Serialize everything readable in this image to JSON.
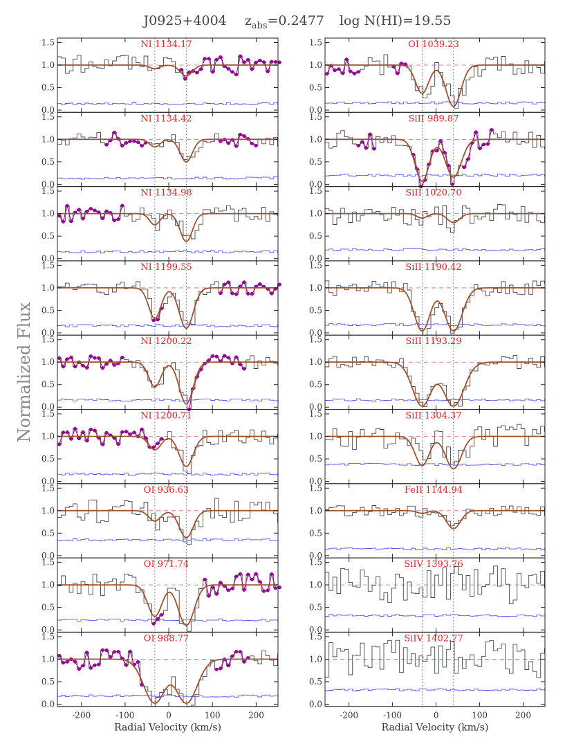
{
  "title": {
    "object": "J0925+4004",
    "zabs_prefix": "z",
    "zabs_sub": "abs",
    "zabs_value": "=0.2477",
    "logN": "log N(HI)=19.55"
  },
  "chart_data": {
    "type": "line",
    "ylabel": "Normalized Flux",
    "xlabel": "Radial Velocity (km/s)",
    "xlim": [
      -255,
      250
    ],
    "ylim": [
      -0.05,
      1.6
    ],
    "xticks": [
      -200,
      -100,
      0,
      100,
      200
    ],
    "yticks": [
      "0.0",
      "0.5",
      "1.0",
      "1.5"
    ],
    "component_velocities": [
      -32,
      40
    ],
    "colors": {
      "data": "#444444",
      "error": "#5555ee",
      "model": "#a0522d",
      "blend": "#990099",
      "label": "#e32222",
      "continuum": "#cc6666"
    },
    "columns": [
      {
        "panels": [
          {
            "label": "NI 1134.17",
            "comps": [
              [
                -32,
                0.08,
                12
              ],
              [
                40,
                0.24,
                14
              ]
            ],
            "noise": 0.22,
            "err": 0.14,
            "seed": 11,
            "blend": [
              [
                20,
                250
              ]
            ]
          },
          {
            "label": "NI 1134.42",
            "comps": [
              [
                -32,
                0.17,
                12
              ],
              [
                40,
                0.5,
                14
              ]
            ],
            "noise": 0.16,
            "err": 0.14,
            "seed": 12,
            "blend": [
              [
                -150,
                -50
              ],
              [
                110,
                200
              ]
            ]
          },
          {
            "label": "NI 1134.98",
            "comps": [
              [
                -32,
                0.25,
                12
              ],
              [
                40,
                0.62,
                14
              ]
            ],
            "noise": 0.18,
            "err": 0.15,
            "seed": 13,
            "blend": [
              [
                -255,
                -110
              ]
            ]
          },
          {
            "label": "NI 1199.55",
            "comps": [
              [
                -32,
                0.68,
                14
              ],
              [
                40,
                0.9,
                16
              ]
            ],
            "noise": 0.15,
            "err": 0.16,
            "seed": 14,
            "blend": [
              [
                -40,
                -20
              ],
              [
                110,
                250
              ]
            ]
          },
          {
            "label": "NI 1200.22",
            "comps": [
              [
                -32,
                0.55,
                14
              ],
              [
                40,
                0.93,
                16
              ]
            ],
            "noise": 0.15,
            "err": 0.16,
            "seed": 15,
            "blend": [
              [
                -255,
                -110
              ],
              [
                40,
                170
              ]
            ]
          },
          {
            "label": "NI 1200.71",
            "comps": [
              [
                -32,
                0.3,
                14
              ],
              [
                40,
                0.67,
                16
              ]
            ],
            "noise": 0.18,
            "err": 0.16,
            "seed": 16,
            "blend": [
              [
                -255,
                -20
              ]
            ]
          },
          {
            "label": "OI 936.63",
            "comps": [
              [
                -32,
                0.23,
                14
              ],
              [
                40,
                0.6,
                16
              ]
            ],
            "noise": 0.28,
            "err": 0.35,
            "seed": 17,
            "blend": []
          },
          {
            "label": "OI 971.74",
            "comps": [
              [
                -32,
                0.7,
                16
              ],
              [
                40,
                0.9,
                18
              ]
            ],
            "noise": 0.25,
            "err": 0.22,
            "seed": 18,
            "blend": [
              [
                -40,
                -20
              ],
              [
                70,
                250
              ]
            ]
          },
          {
            "label": "OI 988.77",
            "comps": [
              [
                -32,
                0.98,
                25
              ],
              [
                40,
                0.98,
                25
              ]
            ],
            "noise": 0.22,
            "err": 0.18,
            "seed": 19,
            "blend": [
              [
                -255,
                -60
              ],
              [
                100,
                180
              ]
            ]
          }
        ]
      },
      {
        "panels": [
          {
            "label": "OI 1039.23",
            "comps": [
              [
                -32,
                0.63,
                15
              ],
              [
                40,
                0.92,
                17
              ]
            ],
            "noise": 0.25,
            "err": 0.16,
            "seed": 21,
            "blend": [
              [
                -255,
                -180
              ],
              [
                -110,
                -70
              ]
            ]
          },
          {
            "label": "SiII 989.87",
            "comps": [
              [
                -32,
                0.93,
                16
              ],
              [
                40,
                0.84,
                18
              ]
            ],
            "noise": 0.22,
            "err": 0.2,
            "seed": 22,
            "blend": [
              [
                -190,
                -140
              ],
              [
                -60,
                40
              ],
              [
                60,
                130
              ]
            ]
          },
          {
            "label": "SiII 1020.70",
            "comps": [
              [
                -32,
                0.1,
                12
              ],
              [
                40,
                0.2,
                14
              ]
            ],
            "noise": 0.25,
            "err": 0.2,
            "seed": 23,
            "blend": []
          },
          {
            "label": "SiII 1190.42",
            "comps": [
              [
                -32,
                0.96,
                18
              ],
              [
                40,
                0.96,
                20
              ]
            ],
            "noise": 0.18,
            "err": 0.18,
            "seed": 24,
            "blend": []
          },
          {
            "label": "SiII 1193.29",
            "comps": [
              [
                -32,
                0.98,
                22
              ],
              [
                40,
                0.98,
                24
              ]
            ],
            "noise": 0.15,
            "err": 0.16,
            "seed": 25,
            "blend": []
          },
          {
            "label": "SiII 1304.37",
            "comps": [
              [
                -32,
                0.65,
                16
              ],
              [
                40,
                0.72,
                18
              ]
            ],
            "noise": 0.3,
            "err": 0.38,
            "seed": 26,
            "blend": []
          },
          {
            "label": "FeII 1144.94",
            "comps": [
              [
                -32,
                0.06,
                12
              ],
              [
                40,
                0.4,
                16
              ]
            ],
            "noise": 0.12,
            "err": 0.15,
            "seed": 27,
            "blend": []
          },
          {
            "label": "SiIV 1393.76",
            "comps": [],
            "noise": 0.45,
            "err": 0.32,
            "seed": 28,
            "blend": []
          },
          {
            "label": "SiIV 1402.77",
            "comps": [],
            "noise": 0.42,
            "err": 0.32,
            "seed": 29,
            "blend": []
          }
        ]
      }
    ]
  }
}
